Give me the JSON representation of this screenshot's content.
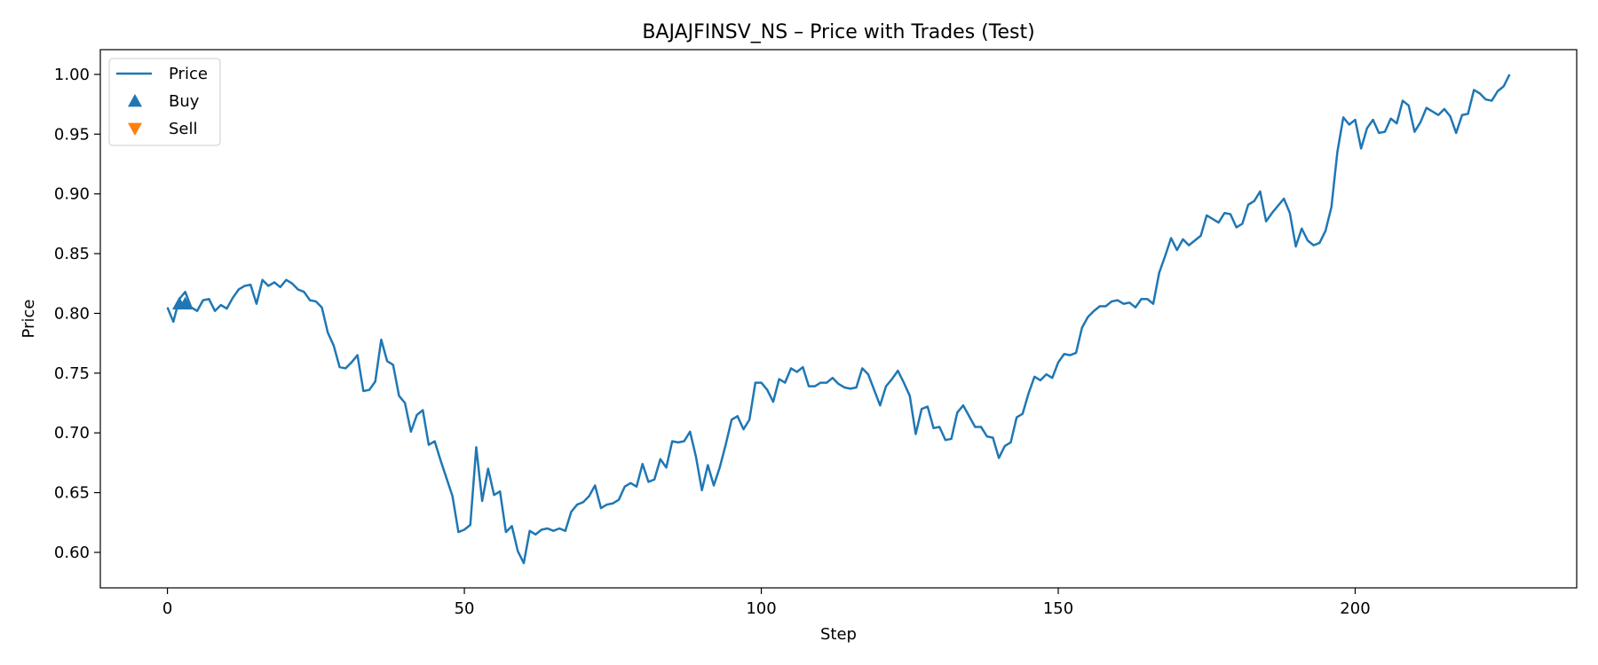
{
  "chart_data": {
    "type": "line",
    "title": "BAJAJFINSV_NS – Price with Trades (Test)",
    "xlabel": "Step",
    "ylabel": "Price",
    "xlim": [
      -11.3,
      237.3
    ],
    "ylim": [
      0.5703,
      1.0207
    ],
    "xticks": [
      0,
      50,
      100,
      150,
      200
    ],
    "yticks": [
      0.6,
      0.65,
      0.7,
      0.75,
      0.8,
      0.85,
      0.9,
      0.95,
      1.0
    ],
    "grid": false,
    "legend": {
      "placement": "top-left",
      "entries": [
        {
          "label": "Price",
          "kind": "line",
          "color": "#1f77b4"
        },
        {
          "label": "Buy",
          "kind": "triangle-up",
          "color": "#1f77b4"
        },
        {
          "label": "Sell",
          "kind": "triangle-down",
          "color": "#ff7f0e"
        }
      ]
    },
    "series": [
      {
        "name": "Price",
        "color": "#1f77b4",
        "x_start": 0,
        "x_step": 1,
        "values": [
          0.805,
          0.793,
          0.812,
          0.818,
          0.805,
          0.802,
          0.811,
          0.812,
          0.802,
          0.807,
          0.804,
          0.813,
          0.82,
          0.823,
          0.824,
          0.808,
          0.828,
          0.823,
          0.826,
          0.822,
          0.828,
          0.825,
          0.82,
          0.818,
          0.811,
          0.81,
          0.805,
          0.784,
          0.773,
          0.755,
          0.754,
          0.759,
          0.765,
          0.735,
          0.736,
          0.743,
          0.778,
          0.76,
          0.757,
          0.731,
          0.725,
          0.701,
          0.715,
          0.719,
          0.69,
          0.693,
          0.677,
          0.662,
          0.647,
          0.617,
          0.619,
          0.623,
          0.688,
          0.643,
          0.67,
          0.648,
          0.651,
          0.617,
          0.622,
          0.601,
          0.591,
          0.618,
          0.615,
          0.619,
          0.62,
          0.618,
          0.62,
          0.618,
          0.634,
          0.64,
          0.642,
          0.647,
          0.656,
          0.637,
          0.64,
          0.641,
          0.644,
          0.655,
          0.658,
          0.655,
          0.674,
          0.659,
          0.661,
          0.678,
          0.671,
          0.693,
          0.692,
          0.693,
          0.701,
          0.68,
          0.652,
          0.673,
          0.656,
          0.671,
          0.69,
          0.711,
          0.714,
          0.703,
          0.711,
          0.742,
          0.742,
          0.736,
          0.726,
          0.745,
          0.742,
          0.754,
          0.751,
          0.755,
          0.739,
          0.739,
          0.742,
          0.742,
          0.746,
          0.741,
          0.738,
          0.737,
          0.738,
          0.754,
          0.749,
          0.736,
          0.723,
          0.739,
          0.745,
          0.752,
          0.742,
          0.731,
          0.699,
          0.72,
          0.722,
          0.704,
          0.705,
          0.694,
          0.695,
          0.717,
          0.723,
          0.714,
          0.705,
          0.705,
          0.697,
          0.696,
          0.679,
          0.689,
          0.692,
          0.713,
          0.716,
          0.733,
          0.747,
          0.744,
          0.749,
          0.746,
          0.759,
          0.766,
          0.765,
          0.767,
          0.788,
          0.797,
          0.802,
          0.806,
          0.806,
          0.81,
          0.811,
          0.808,
          0.809,
          0.805,
          0.812,
          0.812,
          0.808,
          0.834,
          0.848,
          0.863,
          0.853,
          0.862,
          0.857,
          0.861,
          0.865,
          0.882,
          0.879,
          0.876,
          0.884,
          0.883,
          0.872,
          0.875,
          0.891,
          0.894,
          0.902,
          0.877,
          0.884,
          0.89,
          0.896,
          0.884,
          0.856,
          0.871,
          0.861,
          0.857,
          0.859,
          0.869,
          0.889,
          0.935,
          0.964,
          0.958,
          0.962,
          0.938,
          0.955,
          0.962,
          0.951,
          0.952,
          0.963,
          0.959,
          0.978,
          0.974,
          0.952,
          0.96,
          0.972,
          0.969,
          0.966,
          0.971,
          0.965,
          0.951,
          0.966,
          0.967,
          0.987,
          0.984,
          0.979,
          0.978,
          0.986,
          0.99,
          1.0
        ]
      }
    ],
    "trades": {
      "buy": [
        {
          "x": 2,
          "y": 0.808
        },
        {
          "x": 3,
          "y": 0.808
        }
      ],
      "sell": []
    }
  }
}
